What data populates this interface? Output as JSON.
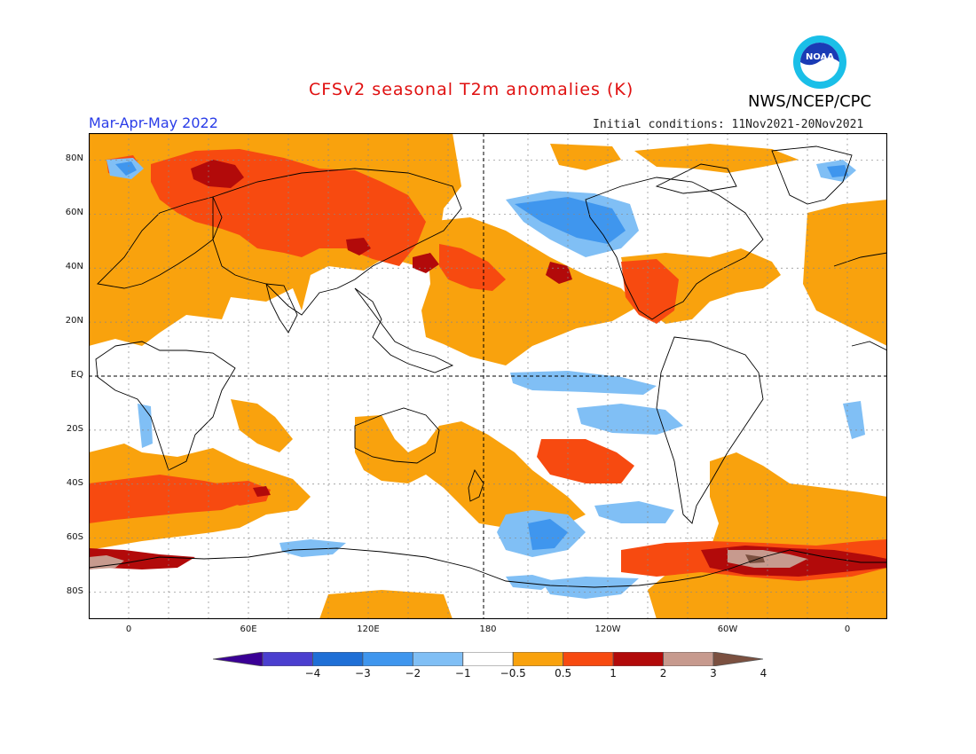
{
  "header": {
    "title": "CFSv2 seasonal T2m anomalies (K)",
    "agency": "NWS/NCEP/CPC",
    "period": "Mar-Apr-May 2022",
    "initial_conditions": "Initial conditions: 11Nov2021-20Nov2021",
    "logo_text": "NOAA"
  },
  "map": {
    "projection": "equirectangular",
    "lon_range": [
      -20,
      380
    ],
    "lat_range": [
      -90,
      90
    ],
    "lat_labels": [
      "80N",
      "60N",
      "40N",
      "20N",
      "EQ",
      "20S",
      "40S",
      "60S",
      "80S"
    ],
    "lon_labels": [
      "0",
      "60E",
      "120E",
      "180",
      "120W",
      "60W",
      "0"
    ],
    "grid": "dotted",
    "reference_lines": [
      "equator dashed",
      "dateline dashed"
    ]
  },
  "colorbar": {
    "ticks": [
      "-4",
      "-3",
      "-2",
      "-1",
      "-0.5",
      "0.5",
      "1",
      "2",
      "3",
      "4"
    ],
    "colors": [
      "#3a0095",
      "#4b3fcf",
      "#1f6fd6",
      "#3f96ee",
      "#80bff5",
      "#ffffff",
      "#f9a20d",
      "#f74a10",
      "#b20a0a",
      "#c79a8e",
      "#7b5040"
    ]
  }
}
